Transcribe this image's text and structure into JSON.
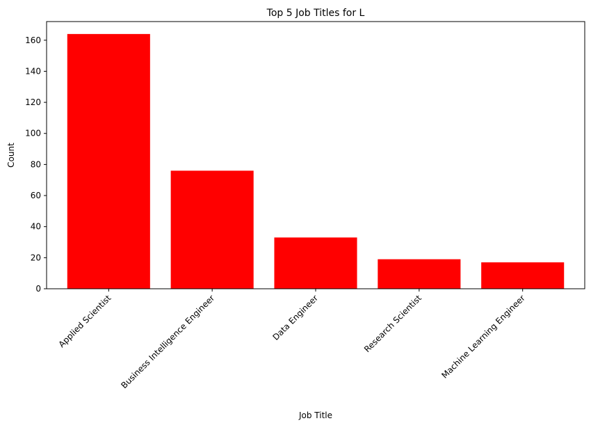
{
  "chart_data": {
    "type": "bar",
    "title": "Top 5 Job Titles for L",
    "xlabel": "Job Title",
    "ylabel": "Count",
    "categories": [
      "Applied Scientist",
      "Business Intelligence Engineer",
      "Data Engineer",
      "Research Scientist",
      "Machine Learning Engineer"
    ],
    "values": [
      164,
      76,
      33,
      19,
      17
    ],
    "ylim": [
      0,
      172
    ],
    "yticks": [
      0,
      20,
      40,
      60,
      80,
      100,
      120,
      140,
      160
    ],
    "bar_color": "#ff0000",
    "grid": false,
    "xtick_rotation_deg": 45
  }
}
